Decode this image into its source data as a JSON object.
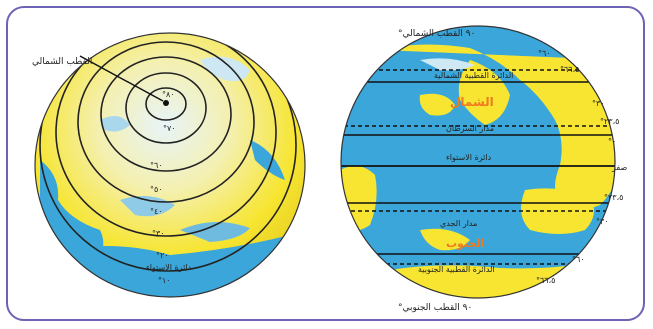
{
  "left_globe": {
    "north_pole_label": "القطب الشمالي",
    "ring_labels": [
      "°٨٠",
      "°٧٠",
      "°٦٠",
      "°٥٠",
      "°٤٠",
      "°٣٠",
      "°٢٠",
      "°١٠"
    ],
    "equator_label": "دائرة الاستواء"
  },
  "right_globe": {
    "top_label": "°٩٠ القطب الشمالي",
    "bottom_label": "°٩٠ القطب الجنوبي",
    "inner_labels": {
      "arctic_circle": "الدائرة القطبية الشمالية",
      "north_word": "الشمال",
      "tropic_cancer": "مدار السرطان",
      "equator": "دائرة الاستواء",
      "tropic_capricorn": "مدار الجدي",
      "south_word": "الجنوب",
      "antarctic_circle": "الدائرة القطبية الجنوبية"
    },
    "degree_labels": [
      "°٦٠",
      "°٦٦،٥",
      "°٣٠",
      "°٢٣،٥",
      "°٠",
      "صفر",
      "°٢٣،٥",
      "°٣٠",
      "°٦٠",
      "°٦٦،٥"
    ]
  },
  "colors": {
    "ocean": "#3aa6d9",
    "land": "#f7e531",
    "frame": "#6d63b4",
    "orange": "#ef7a1f"
  }
}
